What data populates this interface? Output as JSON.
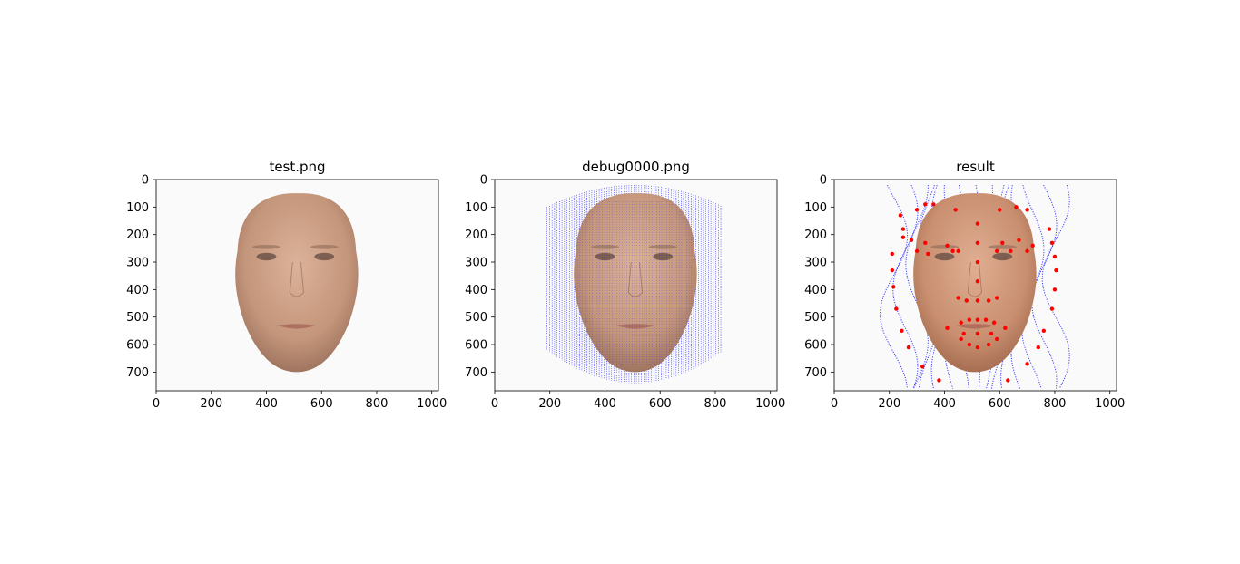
{
  "figure": {
    "panels": [
      {
        "title": "test.png",
        "kind": "face"
      },
      {
        "title": "debug0000.png",
        "kind": "face-mesh"
      },
      {
        "title": "result",
        "kind": "face-landmarks"
      }
    ]
  },
  "chart_data": [
    {
      "type": "image",
      "title": "test.png",
      "xticks": [
        0,
        200,
        400,
        600,
        800,
        1000
      ],
      "yticks": [
        0,
        100,
        200,
        300,
        400,
        500,
        600,
        700
      ],
      "xlim": [
        0,
        1024
      ],
      "ylim": [
        768,
        0
      ]
    },
    {
      "type": "image",
      "title": "debug0000.png",
      "xticks": [
        0,
        200,
        400,
        600,
        800,
        1000
      ],
      "yticks": [
        0,
        100,
        200,
        300,
        400,
        500,
        600,
        700
      ],
      "xlim": [
        0,
        1024
      ],
      "ylim": [
        768,
        0
      ]
    },
    {
      "type": "image",
      "title": "result",
      "xticks": [
        0,
        200,
        400,
        600,
        800,
        1000
      ],
      "yticks": [
        0,
        100,
        200,
        300,
        400,
        500,
        600,
        700
      ],
      "xlim": [
        0,
        1024
      ],
      "ylim": [
        768,
        0
      ]
    }
  ],
  "colors": {
    "background": "#fafafa",
    "skin": "#c89a7e",
    "mesh": "#0000ff",
    "landmark": "#ff0000"
  },
  "icons": [
    "face-image",
    "mesh-overlay",
    "landmark-points"
  ]
}
